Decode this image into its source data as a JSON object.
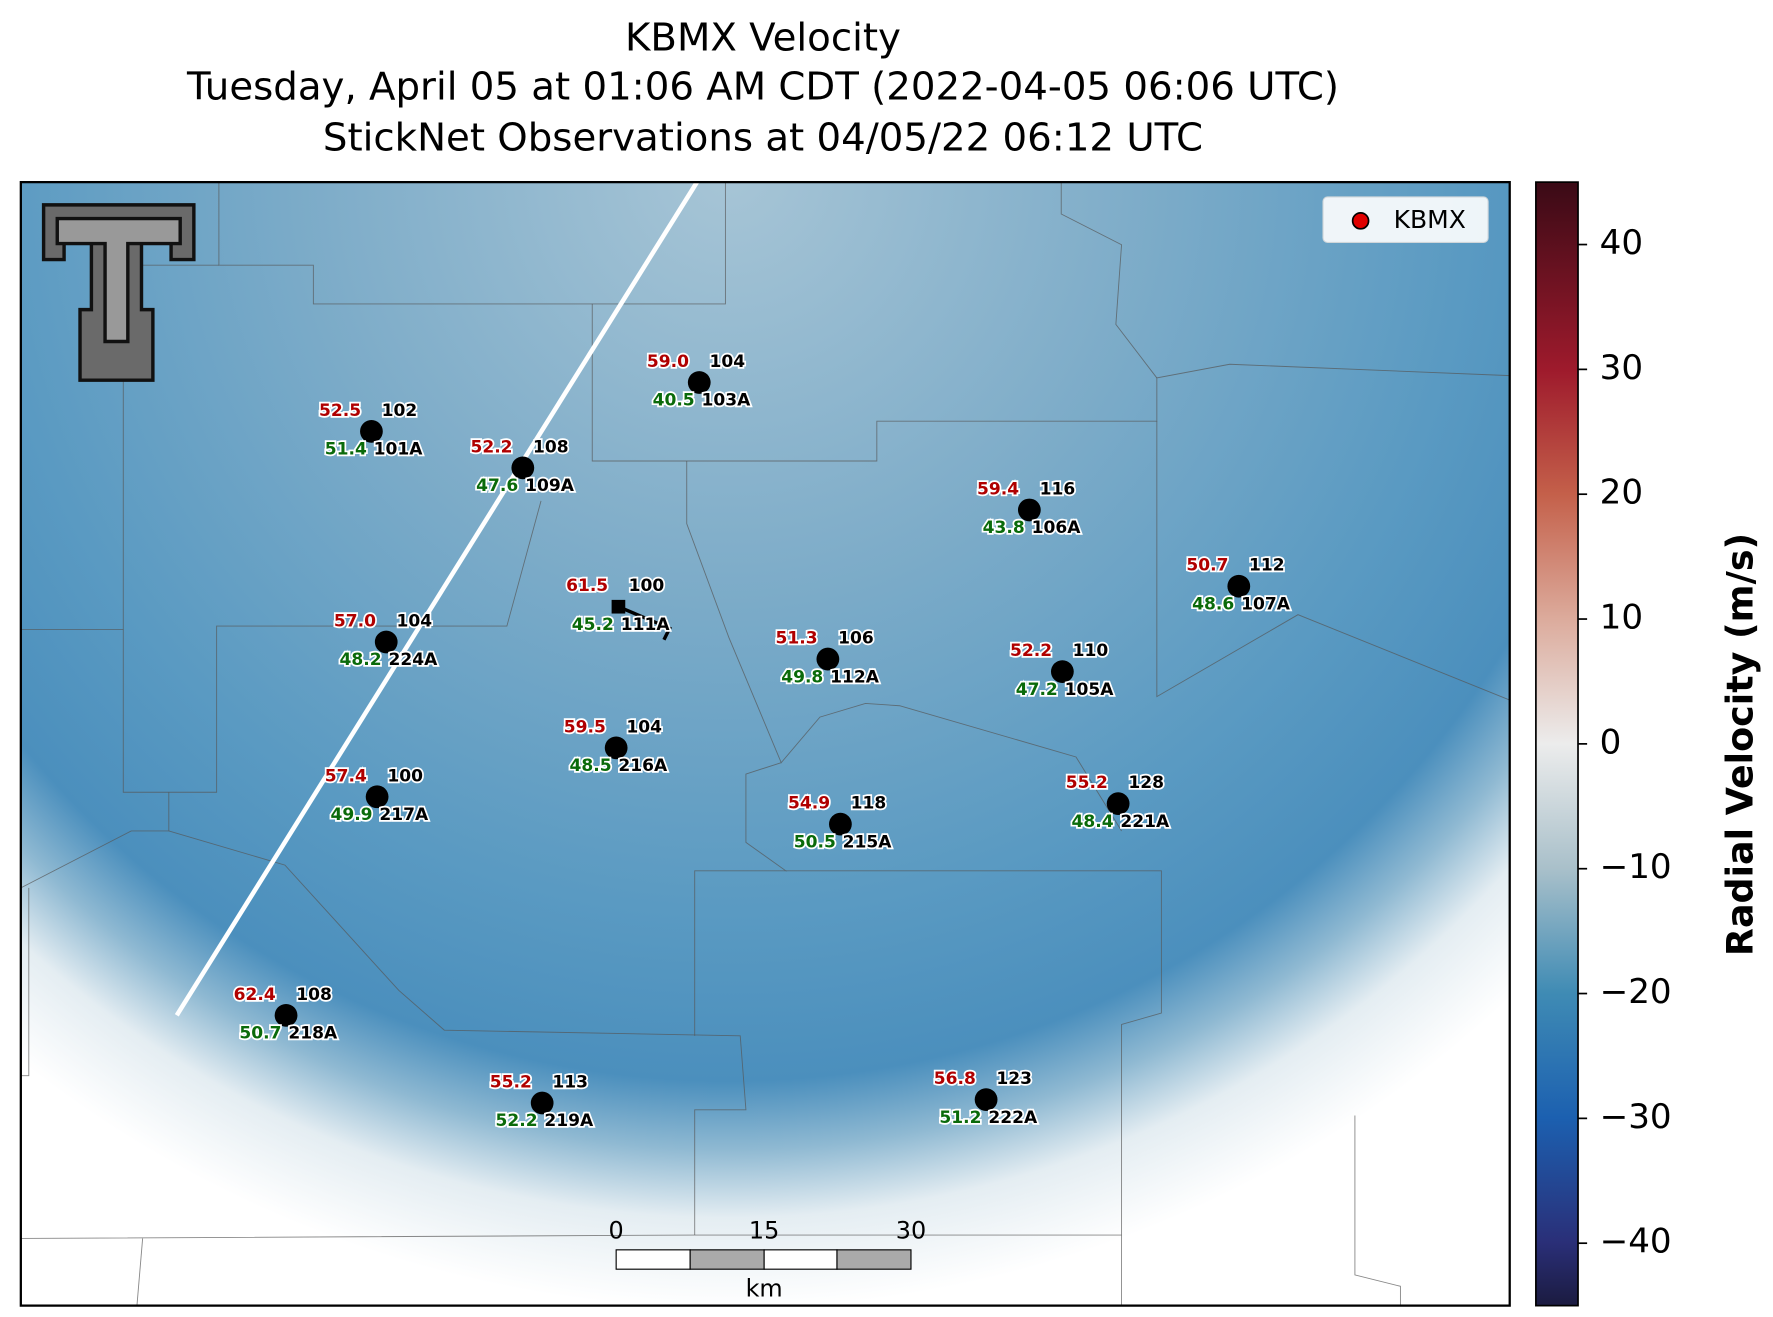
{
  "header": {
    "title": "KBMX Velocity",
    "subtitle": "Tuesday, April 05 at 01:06 AM CDT (2022-04-05 06:06 UTC)",
    "observations": "StickNet Observations at 04/05/22 06:12 UTC"
  },
  "legend": {
    "label": "KBMX",
    "color": "#e00000"
  },
  "stations": [
    {
      "temp": "52.5",
      "dir": "102",
      "dew": "51.4",
      "id": "101A"
    },
    {
      "temp": "52.2",
      "dir": "108",
      "dew": "47.6",
      "id": "109A"
    },
    {
      "temp": "59.0",
      "dir": "104",
      "dew": "40.5",
      "id": "103A"
    },
    {
      "temp": "59.4",
      "dir": "116",
      "dew": "43.8",
      "id": "106A"
    },
    {
      "temp": "50.7",
      "dir": "112",
      "dew": "48.6",
      "id": "107A"
    },
    {
      "temp": "57.0",
      "dir": "104",
      "dew": "48.2",
      "id": "224A"
    },
    {
      "temp": "61.5",
      "dir": "100",
      "dew": "45.2",
      "id": "111A"
    },
    {
      "temp": "51.3",
      "dir": "106",
      "dew": "49.8",
      "id": "112A"
    },
    {
      "temp": "52.2",
      "dir": "110",
      "dew": "47.2",
      "id": "105A"
    },
    {
      "temp": "59.5",
      "dir": "104",
      "dew": "48.5",
      "id": "216A"
    },
    {
      "temp": "57.4",
      "dir": "100",
      "dew": "49.9",
      "id": "217A"
    },
    {
      "temp": "54.9",
      "dir": "118",
      "dew": "50.5",
      "id": "215A"
    },
    {
      "temp": "55.2",
      "dir": "128",
      "dew": "48.4",
      "id": "221A"
    },
    {
      "temp": "62.4",
      "dir": "108",
      "dew": "50.7",
      "id": "218A"
    },
    {
      "temp": "55.2",
      "dir": "113",
      "dew": "52.2",
      "id": "219A"
    },
    {
      "temp": "56.8",
      "dir": "123",
      "dew": "51.2",
      "id": "222A"
    }
  ],
  "scale_bar": {
    "labels": [
      "0",
      "15",
      "30"
    ],
    "unit": "km"
  },
  "colorbar": {
    "label": "Radial Velocity (m/s)",
    "ylim": [
      -45,
      45
    ],
    "yticks": [
      {
        "value": -40,
        "label": "−40"
      },
      {
        "value": -30,
        "label": "−30"
      },
      {
        "value": -20,
        "label": "−20"
      },
      {
        "value": -10,
        "label": "−10"
      },
      0,
      10,
      20,
      30,
      40
    ]
  }
}
